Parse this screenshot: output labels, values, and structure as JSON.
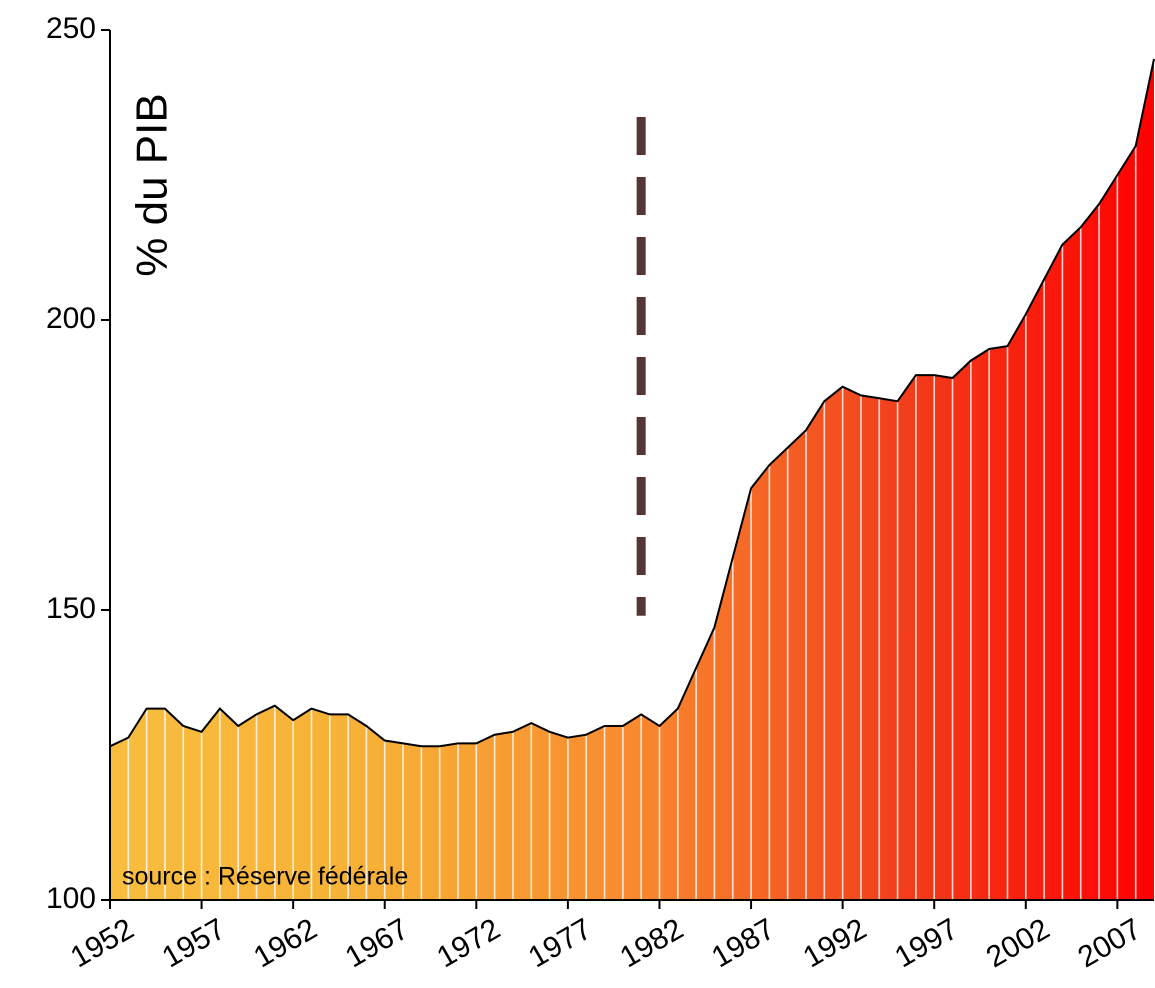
{
  "chart_data": {
    "type": "area",
    "y_label": "% du PIB",
    "annotation": "source : Réserve fédérale",
    "x": [
      1952,
      1953,
      1954,
      1955,
      1956,
      1957,
      1958,
      1959,
      1960,
      1961,
      1962,
      1963,
      1964,
      1965,
      1966,
      1967,
      1968,
      1969,
      1970,
      1971,
      1972,
      1973,
      1974,
      1975,
      1976,
      1977,
      1978,
      1979,
      1980,
      1981,
      1982,
      1983,
      1984,
      1985,
      1986,
      1987,
      1988,
      1989,
      1990,
      1991,
      1992,
      1993,
      1994,
      1995,
      1996,
      1997,
      1998,
      1999,
      2000,
      2001,
      2002,
      2003,
      2004,
      2005,
      2006,
      2007,
      2008,
      2009
    ],
    "values": [
      126.5,
      128,
      133,
      133,
      130,
      129,
      133,
      130,
      132,
      133.5,
      131,
      133,
      132,
      132,
      130,
      127.5,
      127,
      126.5,
      126.5,
      127,
      127,
      128.5,
      129,
      130.5,
      129,
      128,
      128.5,
      130,
      130,
      132,
      130,
      133,
      140,
      147,
      159,
      171,
      175,
      178,
      181,
      186,
      188.5,
      187,
      186.5,
      186,
      190.5,
      190.5,
      190,
      193,
      195,
      195.5,
      201,
      207,
      213,
      216,
      220,
      225,
      230,
      245
    ],
    "gradient": [
      "#f8bd3e",
      "#f7b036",
      "#f98a2f",
      "#f2401c",
      "#ff0000"
    ],
    "outline_color": "#000000",
    "reference_line": {
      "x": 1981,
      "y_from": 149,
      "y_to": 235,
      "color": "#553535"
    },
    "xlim": [
      1952,
      2009
    ],
    "xticks": [
      1952,
      1957,
      1962,
      1967,
      1972,
      1977,
      1982,
      1987,
      1992,
      1997,
      2002,
      2007
    ],
    "ylim": [
      100,
      250
    ],
    "yticks": [
      100,
      150,
      200,
      250
    ]
  }
}
